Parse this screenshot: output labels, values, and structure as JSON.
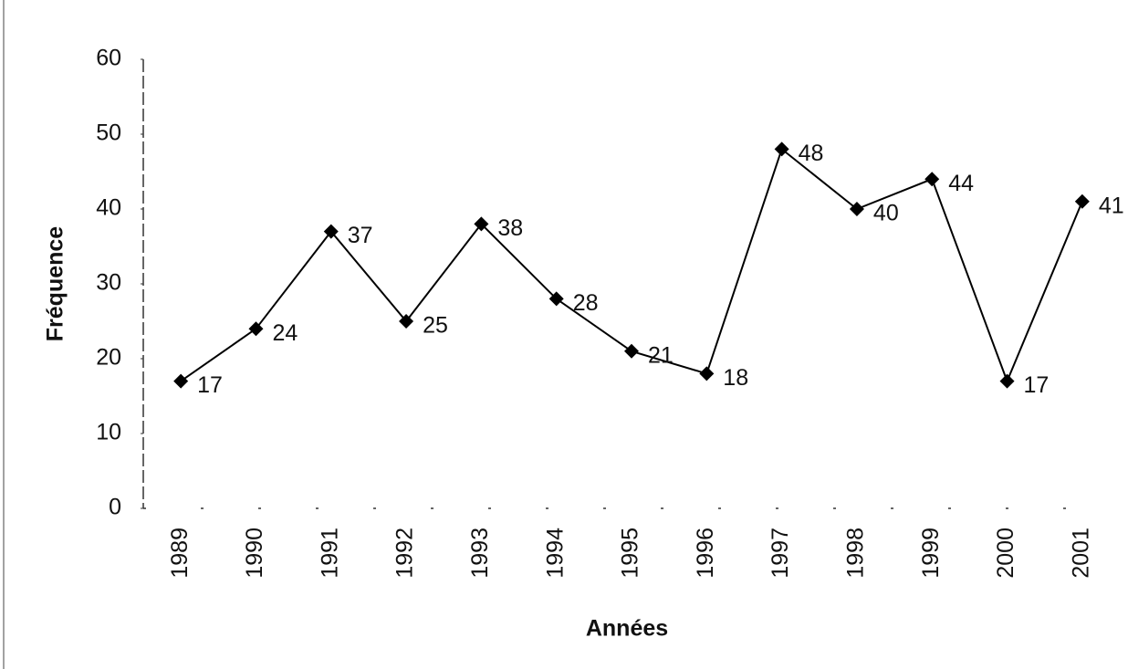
{
  "chart_data": {
    "type": "line",
    "x_label": "Années",
    "y_label": "Fréquence",
    "categories": [
      "1989",
      "1990",
      "1991",
      "1992",
      "1993",
      "1994",
      "1995",
      "1996",
      "1997",
      "1998",
      "1999",
      "2000",
      "2001"
    ],
    "values": [
      17,
      24,
      37,
      25,
      38,
      28,
      21,
      18,
      48,
      40,
      44,
      17,
      41
    ],
    "color": "#000000",
    "ylim": [
      0,
      60
    ],
    "yticks": [
      0,
      10,
      20,
      30,
      40,
      50,
      60
    ],
    "grid": false
  }
}
